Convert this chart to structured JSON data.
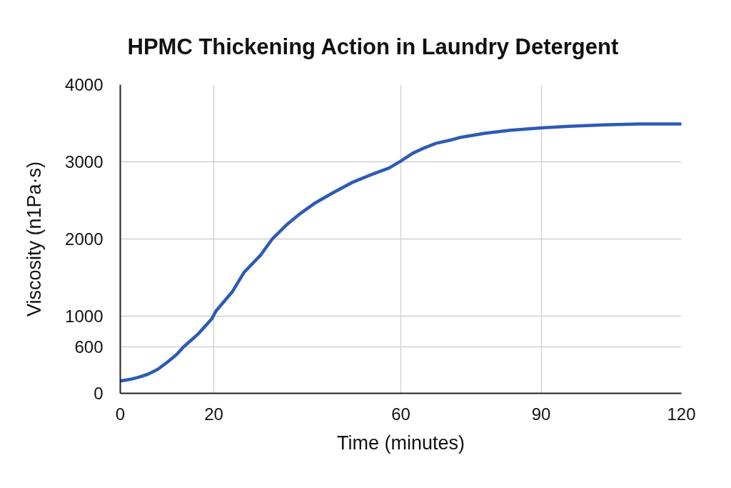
{
  "chart_data": {
    "type": "line",
    "title": "HPMC Thickening Action in Laundry Detergent",
    "xlabel": "Time (minutes)",
    "ylabel": "Viscosity (n1Pa·s)",
    "x": [
      0,
      2,
      4,
      6,
      8,
      10,
      12,
      13.5,
      15,
      16.5,
      18,
      19.5,
      20.5,
      24,
      26.5,
      30,
      32.5,
      35.5,
      38.5,
      41.5,
      45.5,
      49.5,
      53.5,
      57.5,
      60,
      62.5,
      65,
      67.5,
      70.5,
      73,
      78,
      83.5,
      90,
      96,
      103.5,
      111,
      120
    ],
    "series": [
      {
        "color": "#2d5bb5",
        "values": [
          160,
          180,
          210,
          250,
          310,
          400,
          500,
          600,
          680,
          760,
          860,
          960,
          1070,
          1320,
          1570,
          1790,
          2000,
          2180,
          2330,
          2460,
          2600,
          2730,
          2830,
          2920,
          3010,
          3110,
          3180,
          3240,
          3280,
          3320,
          3370,
          3410,
          3440,
          3460,
          3480,
          3490,
          3490
        ]
      }
    ],
    "xlim": [
      0,
      120
    ],
    "ylim": [
      0,
      4000
    ],
    "xticks": [
      0,
      20,
      60,
      90,
      120
    ],
    "yticks": [
      0,
      600,
      1000,
      2000,
      3000,
      4000
    ],
    "grid": true
  }
}
